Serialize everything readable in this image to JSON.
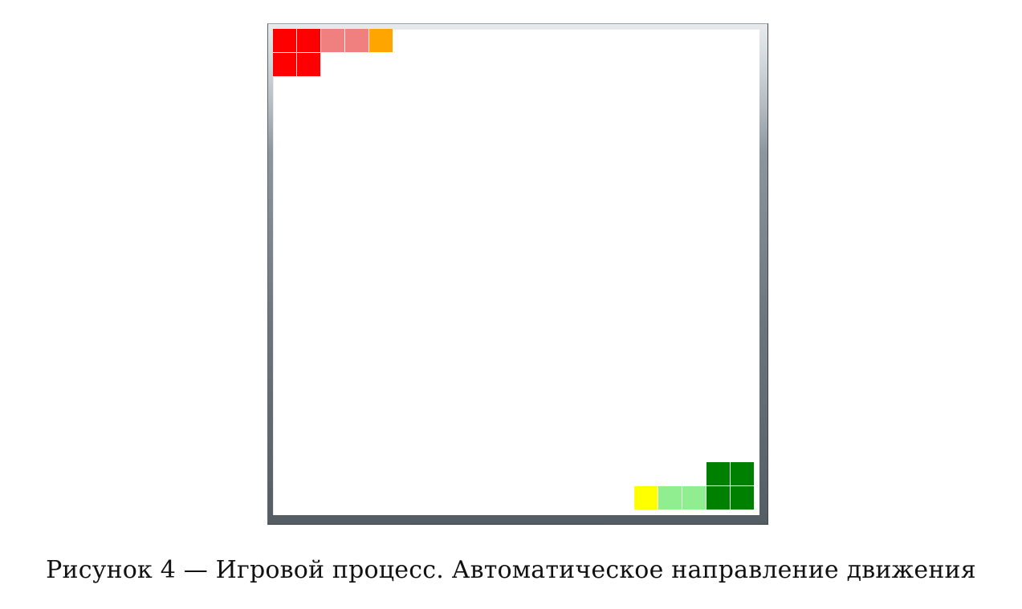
{
  "caption": "Рисунок 4 — Игровой процесс. Автоматическое направление движения",
  "colors": {
    "snake_red_head": "#ff0000",
    "snake_red_body": "#f08080",
    "snake_red_tail": "#ffa500",
    "snake_green_head": "#008000",
    "snake_green_body": "#90ee90",
    "snake_green_tail": "#ffff00",
    "board_background": "#ffffff"
  },
  "board": {
    "cells": [
      {
        "role": "red-head",
        "color": "#ff0000",
        "col": 0,
        "row": 0
      },
      {
        "role": "red-head",
        "color": "#ff0000",
        "col": 1,
        "row": 0
      },
      {
        "role": "red-head",
        "color": "#ff0000",
        "col": 0,
        "row": 1
      },
      {
        "role": "red-head",
        "color": "#ff0000",
        "col": 1,
        "row": 1
      },
      {
        "role": "red-body",
        "color": "#f08080",
        "col": 2,
        "row": 0
      },
      {
        "role": "red-body",
        "color": "#f08080",
        "col": 3,
        "row": 0
      },
      {
        "role": "red-tail",
        "color": "#ffa500",
        "col": 4,
        "row": 0
      },
      {
        "role": "green-head",
        "color": "#008000",
        "col": 18,
        "row": 18
      },
      {
        "role": "green-head",
        "color": "#008000",
        "col": 19,
        "row": 18
      },
      {
        "role": "green-head",
        "color": "#008000",
        "col": 18,
        "row": 19
      },
      {
        "role": "green-head",
        "color": "#008000",
        "col": 19,
        "row": 19
      },
      {
        "role": "green-body",
        "color": "#90ee90",
        "col": 17,
        "row": 19
      },
      {
        "role": "green-body",
        "color": "#90ee90",
        "col": 16,
        "row": 19
      },
      {
        "role": "green-tail",
        "color": "#ffff00",
        "col": 15,
        "row": 19
      }
    ]
  }
}
